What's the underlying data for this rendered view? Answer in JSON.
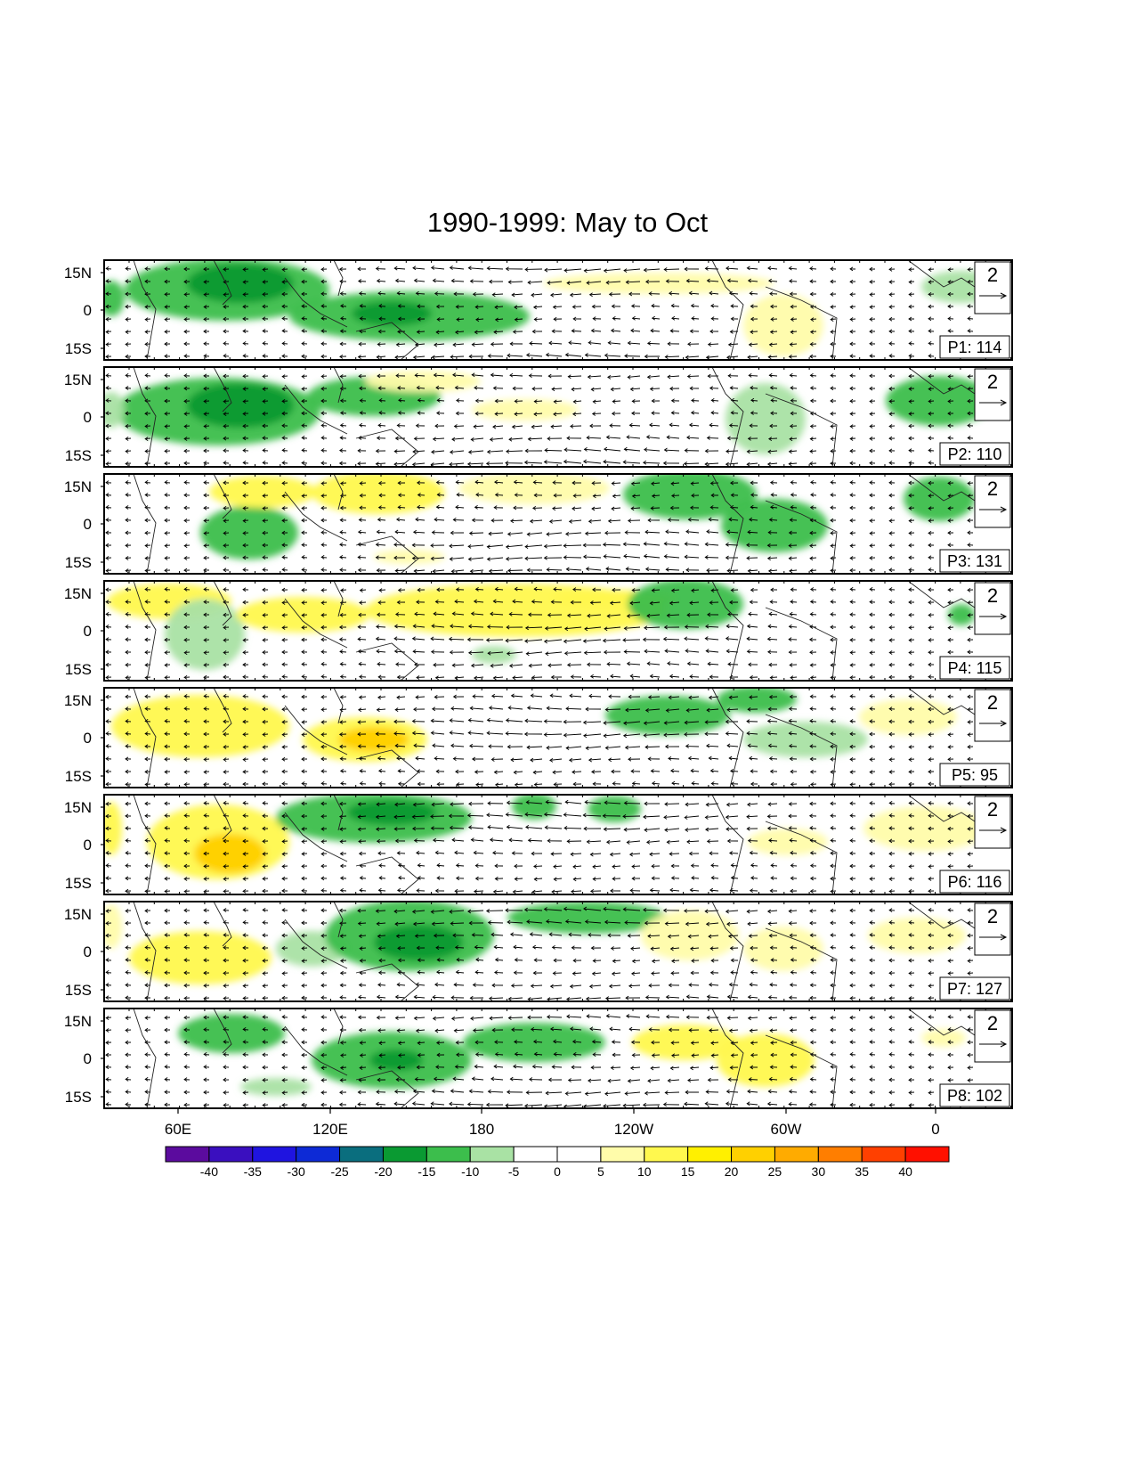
{
  "title": "1990-1999: May to Oct",
  "panels": [
    {
      "label": "P1: 114",
      "ref_vector": "2"
    },
    {
      "label": "P2: 110",
      "ref_vector": "2"
    },
    {
      "label": "P3: 131",
      "ref_vector": "2"
    },
    {
      "label": "P4: 115",
      "ref_vector": "2"
    },
    {
      "label": "P5: 95",
      "ref_vector": "2"
    },
    {
      "label": "P6: 116",
      "ref_vector": "2"
    },
    {
      "label": "P7: 127",
      "ref_vector": "2"
    },
    {
      "label": "P8: 102",
      "ref_vector": "2"
    }
  ],
  "lat_ticks": [
    "15N",
    "0",
    "15S"
  ],
  "lon_ticks": [
    "60E",
    "120E",
    "180",
    "120W",
    "60W",
    "0"
  ],
  "colorbar": {
    "labels": [
      "-40",
      "-35",
      "-30",
      "-25",
      "-20",
      "-15",
      "-10",
      "-5",
      "0",
      "5",
      "10",
      "15",
      "20",
      "25",
      "30",
      "35",
      "40"
    ],
    "colors": [
      "#5b0b9e",
      "#3a0fbf",
      "#1f14e0",
      "#0d2ad6",
      "#0a6e7e",
      "#0a9a32",
      "#3cbe4c",
      "#a9e2a4",
      "#ffffff",
      "#ffffff",
      "#fffcaa",
      "#fff84e",
      "#fff000",
      "#ffd000",
      "#ffab00",
      "#ff7e00",
      "#ff4000",
      "#ff1000"
    ]
  },
  "colors": {
    "green_light": "#a9e2a4",
    "green_mid": "#3cbe4c",
    "green_dark": "#0a9a32",
    "yellow_light": "#fffcaa",
    "yellow": "#fff84e",
    "orange": "#ffd000"
  }
}
